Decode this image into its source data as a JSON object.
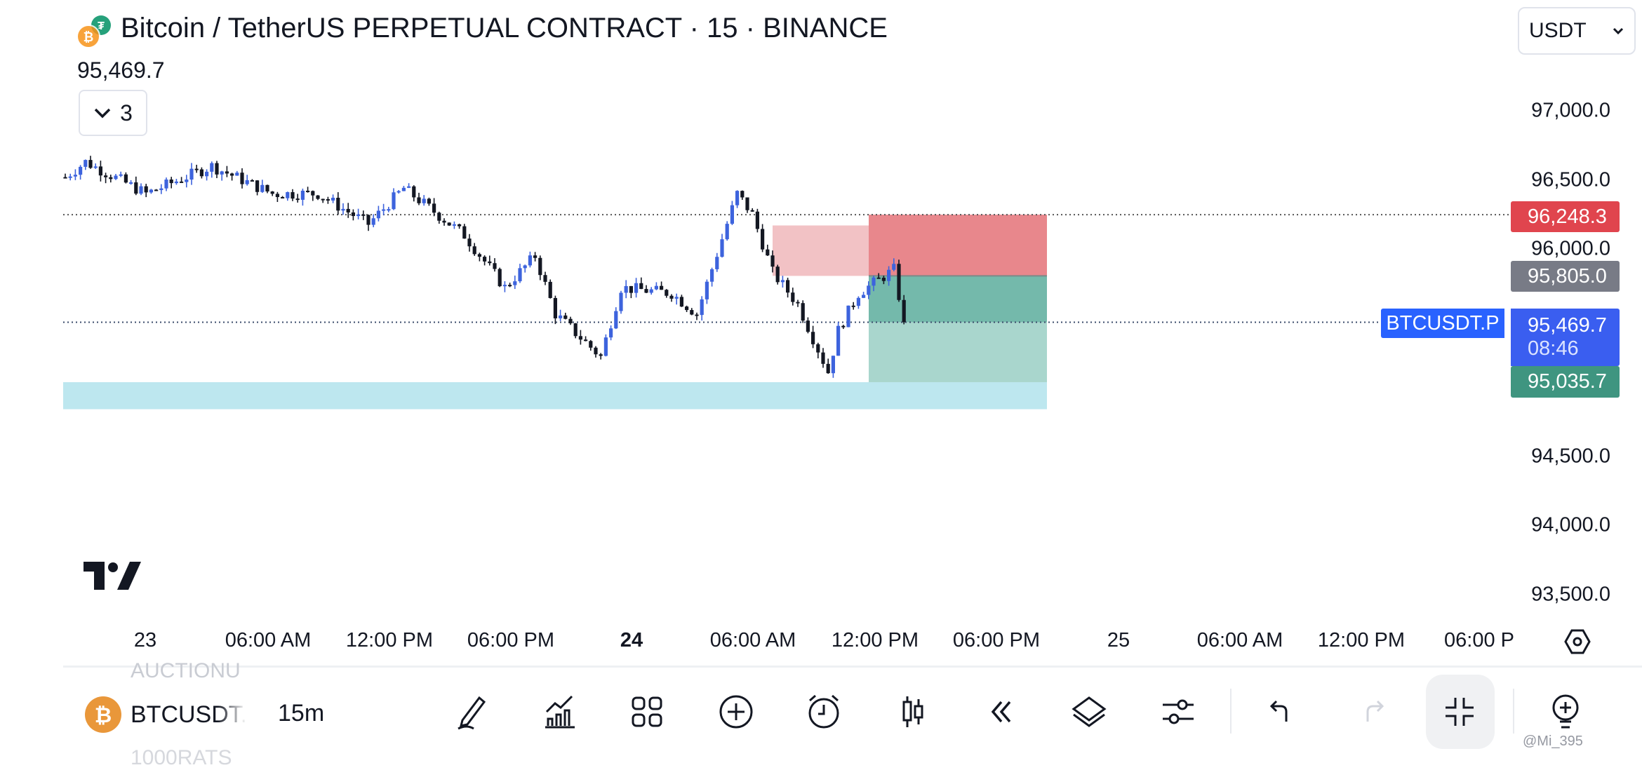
{
  "header": {
    "title": "Bitcoin / TetherUS PERPETUAL CONTRACT · 15 · BINANCE",
    "last_price": "95,469.7",
    "indicators_count": "3",
    "currency": "USDT"
  },
  "price_axis": {
    "ticks": [
      "97,000.0",
      "96,500.0",
      "96,000.0",
      "94,500.0",
      "94,000.0",
      "93,500.0"
    ],
    "tick_values": [
      97000,
      96500,
      96000,
      94500,
      94000,
      93500
    ],
    "badges": {
      "stop": "96,248.3",
      "entry": "95,805.0",
      "current": "95,469.7",
      "countdown": "08:46",
      "target": "95,035.7"
    },
    "symbol_label": "BTCUSDT.P"
  },
  "time_axis": {
    "ticks": [
      "23",
      "06:00 AM",
      "12:00 PM",
      "06:00 PM",
      "24",
      "06:00 AM",
      "12:00 PM",
      "06:00 PM",
      "25",
      "06:00 AM",
      "12:00 PM",
      "06:00 P"
    ]
  },
  "bottom_bar": {
    "symbol": "BTCUSDT.P",
    "interval": "15m",
    "faded_above": "AUCTIONU",
    "faded_below": "1000RATS",
    "watermark": "@Mi_395"
  },
  "colors": {
    "up": "#3d63dd",
    "down": "#131722",
    "stop_zone": "#e8878c",
    "target_zone": "#74b9ab",
    "support_zone": "#bde7ef",
    "accent": "#2962ff"
  },
  "chart_data": {
    "type": "candlestick",
    "interval": "15m",
    "waypoints": [
      [
        0,
        96520
      ],
      [
        4,
        96630
      ],
      [
        16,
        96400
      ],
      [
        29,
        96600
      ],
      [
        41,
        96400
      ],
      [
        50,
        96400
      ],
      [
        60,
        96180
      ],
      [
        67,
        96440
      ],
      [
        79,
        96100
      ],
      [
        87,
        95720
      ],
      [
        93,
        95950
      ],
      [
        97,
        95530
      ],
      [
        106,
        95220
      ],
      [
        110,
        95720
      ],
      [
        120,
        95680
      ],
      [
        125,
        95530
      ],
      [
        133,
        96400
      ],
      [
        136,
        96250
      ],
      [
        140,
        95830
      ],
      [
        145,
        95600
      ],
      [
        151,
        95110
      ],
      [
        153,
        95410
      ],
      [
        157,
        95680
      ],
      [
        164,
        95850
      ],
      [
        166,
        95469.7
      ]
    ],
    "levels": {
      "stop": 96248.3,
      "entry": 95805.0,
      "target": 95035.7,
      "current": 95469.7
    },
    "zones": {
      "support": [
        94840,
        95035.7
      ],
      "supply": [
        95805,
        96170
      ]
    }
  }
}
